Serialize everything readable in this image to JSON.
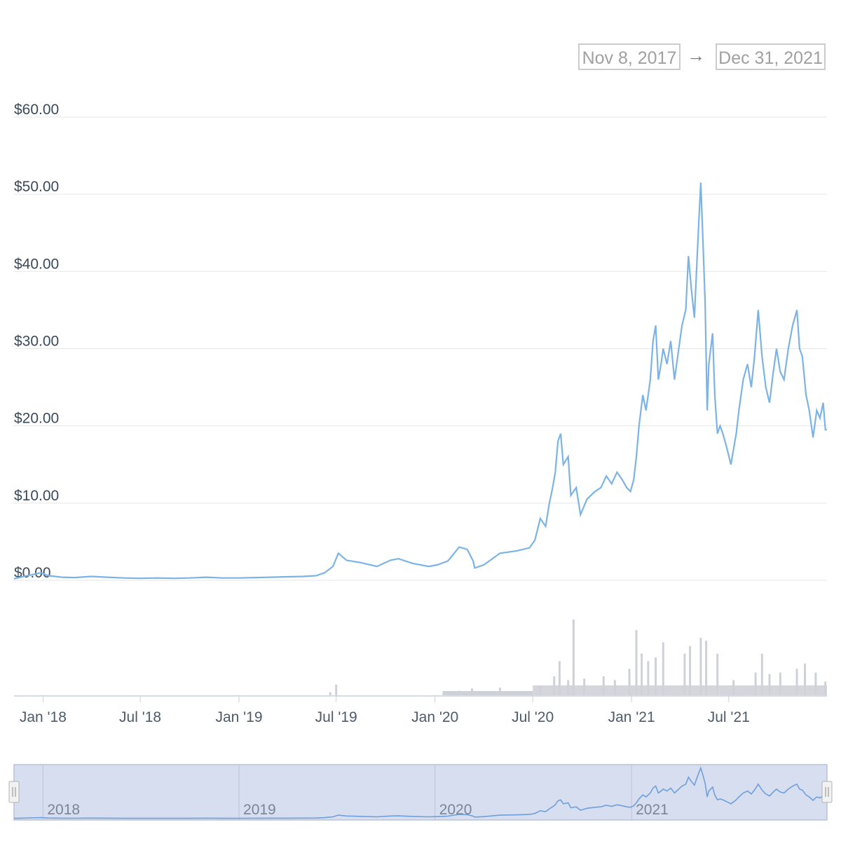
{
  "range_selector": {
    "from": "Nov 8, 2017",
    "arrow": "→",
    "to": "Dec 31, 2021"
  },
  "colors": {
    "price_line": "#7cb3e6",
    "volume_bars": "#cfd1d8",
    "gridline": "#e6e6e6",
    "navigator_fill": "#d6deef",
    "navigator_line": "#6f9fdc"
  },
  "icons": {
    "left_handle": "navigator-left-handle-icon",
    "right_handle": "navigator-right-handle-icon"
  },
  "chart_data": {
    "type": "line",
    "title": "",
    "xlabel": "",
    "ylabel": "",
    "x_range": [
      "2017-11-08",
      "2021-12-31"
    ],
    "ylim": [
      0,
      60
    ],
    "y_ticks": [
      "$0.00",
      "$10.00",
      "$20.00",
      "$30.00",
      "$40.00",
      "$50.00",
      "$60.00"
    ],
    "y_tick_values": [
      0,
      10,
      20,
      30,
      40,
      50,
      60
    ],
    "x_ticks": [
      "Jan '18",
      "Jul '18",
      "Jan '19",
      "Jul '19",
      "Jan '20",
      "Jul '20",
      "Jan '21",
      "Jul '21"
    ],
    "x_tick_dates": [
      "2018-01-01",
      "2018-07-01",
      "2019-01-01",
      "2019-07-01",
      "2020-01-01",
      "2020-07-01",
      "2021-01-01",
      "2021-07-01"
    ],
    "grid": true,
    "series": [
      {
        "x": [
          "2017-11-08",
          "2017-11-20",
          "2017-12-10",
          "2017-12-28",
          "2018-01-10",
          "2018-02-05",
          "2018-03-01",
          "2018-04-01",
          "2018-05-01",
          "2018-06-01",
          "2018-07-01",
          "2018-08-01",
          "2018-09-01",
          "2018-10-01",
          "2018-11-01",
          "2018-12-01",
          "2019-01-01",
          "2019-02-01",
          "2019-03-01",
          "2019-04-01",
          "2019-05-01",
          "2019-05-25",
          "2019-06-10",
          "2019-06-25",
          "2019-07-05",
          "2019-07-20",
          "2019-08-15",
          "2019-09-15",
          "2019-10-10",
          "2019-10-25",
          "2019-11-20",
          "2019-12-20",
          "2020-01-05",
          "2020-01-25",
          "2020-02-15",
          "2020-03-01",
          "2020-03-12",
          "2020-03-15",
          "2020-04-01",
          "2020-05-01",
          "2020-06-01",
          "2020-06-25",
          "2020-07-05",
          "2020-07-15",
          "2020-07-25",
          "2020-08-01",
          "2020-08-07",
          "2020-08-12",
          "2020-08-17",
          "2020-08-22",
          "2020-08-27",
          "2020-09-05",
          "2020-09-10",
          "2020-09-20",
          "2020-09-28",
          "2020-10-10",
          "2020-10-25",
          "2020-11-05",
          "2020-11-15",
          "2020-11-25",
          "2020-12-05",
          "2020-12-15",
          "2020-12-23",
          "2020-12-30",
          "2021-01-05",
          "2021-01-10",
          "2021-01-15",
          "2021-01-22",
          "2021-01-28",
          "2021-02-05",
          "2021-02-10",
          "2021-02-15",
          "2021-02-20",
          "2021-02-25",
          "2021-03-01",
          "2021-03-08",
          "2021-03-15",
          "2021-03-22",
          "2021-03-28",
          "2021-04-05",
          "2021-04-12",
          "2021-04-17",
          "2021-04-22",
          "2021-04-28",
          "2021-05-02",
          "2021-05-06",
          "2021-05-10",
          "2021-05-14",
          "2021-05-18",
          "2021-05-22",
          "2021-05-25",
          "2021-06-01",
          "2021-06-05",
          "2021-06-10",
          "2021-06-15",
          "2021-06-20",
          "2021-06-28",
          "2021-07-05",
          "2021-07-15",
          "2021-07-20",
          "2021-07-28",
          "2021-08-05",
          "2021-08-12",
          "2021-08-18",
          "2021-08-25",
          "2021-09-01",
          "2021-09-08",
          "2021-09-15",
          "2021-09-22",
          "2021-09-28",
          "2021-10-05",
          "2021-10-12",
          "2021-10-20",
          "2021-10-28",
          "2021-11-05",
          "2021-11-10",
          "2021-11-15",
          "2021-11-22",
          "2021-11-28",
          "2021-12-05",
          "2021-12-12",
          "2021-12-18",
          "2021-12-24",
          "2021-12-28",
          "2021-12-31"
        ],
        "y": [
          0.2,
          0.4,
          0.7,
          1.0,
          0.6,
          0.4,
          0.35,
          0.5,
          0.4,
          0.3,
          0.25,
          0.3,
          0.25,
          0.3,
          0.4,
          0.3,
          0.3,
          0.35,
          0.4,
          0.45,
          0.5,
          0.6,
          1.0,
          1.8,
          3.5,
          2.6,
          2.3,
          1.8,
          2.6,
          2.8,
          2.2,
          1.8,
          2.0,
          2.5,
          4.3,
          4.0,
          2.5,
          1.6,
          2.0,
          3.5,
          3.8,
          4.2,
          5.2,
          8.0,
          7.0,
          10.0,
          12.0,
          14.0,
          18.0,
          19.0,
          15.0,
          16.0,
          11.0,
          12.0,
          8.5,
          10.5,
          11.5,
          12.0,
          13.5,
          12.5,
          14.0,
          13.0,
          12.0,
          11.5,
          13.0,
          16.0,
          20.0,
          24.0,
          22.0,
          26.0,
          31.0,
          33.0,
          26.0,
          28.0,
          30.0,
          28.0,
          31.0,
          26.0,
          29.0,
          33.0,
          35.0,
          42.0,
          38.0,
          34.0,
          40.0,
          46.0,
          51.5,
          44.0,
          36.0,
          22.0,
          28.0,
          32.0,
          24.0,
          19.0,
          20.0,
          19.0,
          17.0,
          15.0,
          19.0,
          22.0,
          26.0,
          28.0,
          25.0,
          29.0,
          35.0,
          29.0,
          25.0,
          23.0,
          27.0,
          30.0,
          27.0,
          26.0,
          30.0,
          33.0,
          35.0,
          30.0,
          29.0,
          24.0,
          22.0,
          18.5,
          22.0,
          21.0,
          23.0,
          19.5,
          19.5
        ]
      }
    ],
    "volume": {
      "x": [
        "2019-06-20",
        "2019-07-01",
        "2020-02-15",
        "2020-03-10",
        "2020-05-01",
        "2020-07-15",
        "2020-08-10",
        "2020-08-20",
        "2020-09-05",
        "2020-09-15",
        "2020-10-05",
        "2020-11-10",
        "2020-12-01",
        "2020-12-28",
        "2021-01-10",
        "2021-01-20",
        "2021-02-01",
        "2021-02-15",
        "2021-03-01",
        "2021-04-10",
        "2021-04-20",
        "2021-05-10",
        "2021-05-20",
        "2021-06-10",
        "2021-07-10",
        "2021-08-20",
        "2021-09-01",
        "2021-09-15",
        "2021-10-05",
        "2021-11-05",
        "2021-11-20",
        "2021-12-10",
        "2021-12-28"
      ],
      "relative": [
        0.04,
        0.14,
        0.06,
        0.09,
        0.1,
        0.12,
        0.25,
        0.45,
        0.2,
        1.0,
        0.22,
        0.25,
        0.2,
        0.35,
        0.86,
        0.55,
        0.45,
        0.5,
        0.7,
        0.55,
        0.65,
        0.76,
        0.72,
        0.55,
        0.2,
        0.3,
        0.55,
        0.28,
        0.3,
        0.35,
        0.42,
        0.3,
        0.18
      ]
    }
  },
  "navigator": {
    "year_labels": [
      "2018",
      "2019",
      "2020",
      "2021"
    ],
    "year_dates": [
      "2018-01-01",
      "2019-01-01",
      "2020-01-01",
      "2021-01-01"
    ]
  }
}
